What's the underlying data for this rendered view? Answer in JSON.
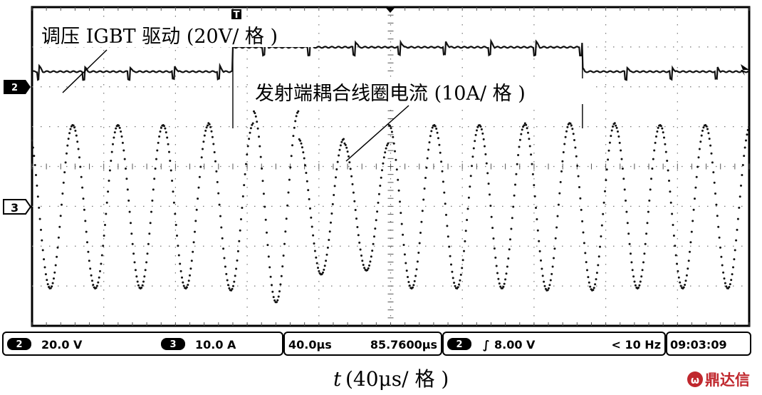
{
  "chart_data": {
    "type": "line",
    "xlabel_var": "t",
    "xlabel_unit": "(40μs/ 格 )",
    "xlim_us": [
      0,
      400
    ],
    "grid": true,
    "divisions": {
      "x": 10,
      "y": 8
    },
    "series": [
      {
        "name": "调压 IGBT 驱动 (20V/ 格 )",
        "channel": "2",
        "style": "square-pulse",
        "period_us": 25.2,
        "low_level_div": 0.7,
        "step_at_us": 112,
        "step_level_div": 1.0,
        "step_end_us": 307,
        "color": "#111111"
      },
      {
        "name": "发射端耦合线圈电流 (10A/ 格 )",
        "channel": "3",
        "style": "dotted-sine",
        "period_us": 25.2,
        "amplitude_div": [
          2.05,
          2.05,
          2.05,
          2.05,
          2.1,
          2.4,
          1.7,
          1.6,
          2.05,
          2.05,
          2.05,
          2.1,
          2.1,
          2.05,
          2.05,
          2.05
        ],
        "color": "#111111"
      }
    ],
    "annotations": [
      {
        "text": "调压 IGBT 驱动 (20V/ 格 )",
        "target_series": 0
      },
      {
        "text": "发射端耦合线圈电流 (10A/ 格 )",
        "target_series": 1
      }
    ]
  },
  "markers": {
    "ch2": "2",
    "ch3": "3",
    "trigger_symbol": "T"
  },
  "status_bar": {
    "ch2_badge": "2",
    "ch2_scale": "20.0 V",
    "ch3_badge": "3",
    "ch3_scale": "10.0 A",
    "timebase": "40.0μs",
    "trigger_pos": "85.7600μs",
    "trig_badge": "2",
    "trig_slope": "∫",
    "trig_level": "8.00 V",
    "freq": "< 10 Hz",
    "clock": "09:03:09"
  },
  "logo": {
    "text": "鼎达信",
    "mark": "ω"
  }
}
